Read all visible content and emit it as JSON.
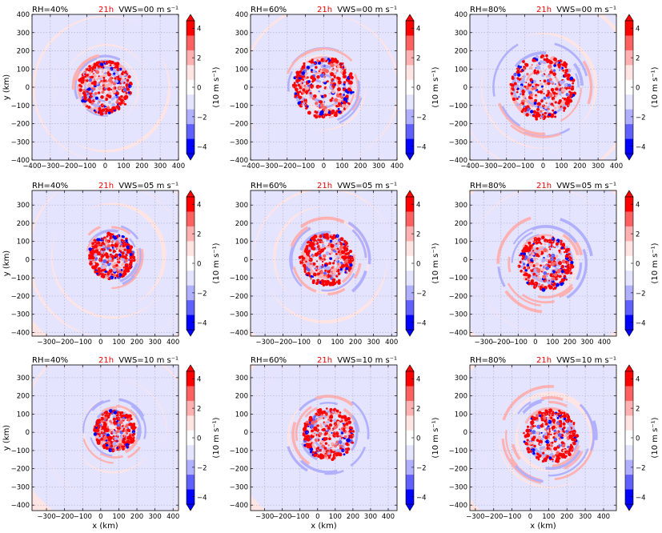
{
  "colors": {
    "red_strong": "#ff0000",
    "red_mid": "#ff6060",
    "red_light": "#ffb0b0",
    "red_faint": "#ffe4e4",
    "blue_faint": "#e4e4ff",
    "blue_light": "#b0b0ff",
    "blue_mid": "#6060ff",
    "blue_strong": "#0000ff",
    "time_label": "#e60000",
    "grid": "#b0b0c8"
  },
  "time_label": "21h",
  "colorbar": {
    "label": "(10 m s⁻¹)",
    "ticks": [
      "4",
      "2",
      "0",
      "−2",
      "−4"
    ],
    "tick_values": [
      4,
      2,
      0,
      -2,
      -4
    ]
  },
  "axis": {
    "xlabel": "x (km)",
    "ylabel": "y (km)"
  },
  "chart_data": [
    {
      "type": "heatmap",
      "rh": "RH=40%",
      "vws": "VWS=00 m s⁻¹",
      "xticks": [
        "−400",
        "−300",
        "−200",
        "−100",
        "0",
        "100",
        "200",
        "300",
        "400"
      ],
      "xvals": [
        -400,
        -300,
        -200,
        -100,
        0,
        100,
        200,
        300,
        400
      ],
      "yticks": [
        "400",
        "300",
        "200",
        "100",
        "0",
        "−100",
        "−200",
        "−300",
        "−400"
      ],
      "yvals": [
        400,
        300,
        200,
        100,
        0,
        -100,
        -200,
        -300,
        -400
      ],
      "xlim": [
        -400,
        400
      ],
      "ylim": [
        -400,
        400
      ],
      "xlabel": "",
      "ylabel": "y (km)",
      "core": {
        "cx": 0,
        "cy": 0,
        "r": 140,
        "spread": 60
      }
    },
    {
      "type": "heatmap",
      "rh": "RH=60%",
      "vws": "VWS=00 m s⁻¹",
      "xticks": [
        "−400",
        "−300",
        "−200",
        "−100",
        "0",
        "100",
        "200",
        "300",
        "400"
      ],
      "xvals": [
        -400,
        -300,
        -200,
        -100,
        0,
        100,
        200,
        300,
        400
      ],
      "yticks": [
        "400",
        "300",
        "200",
        "100",
        "0",
        "−100",
        "−200",
        "−300",
        "−400"
      ],
      "yvals": [
        400,
        300,
        200,
        100,
        0,
        -100,
        -200,
        -300,
        -400
      ],
      "xlim": [
        -400,
        400
      ],
      "ylim": [
        -400,
        400
      ],
      "xlabel": "",
      "ylabel": "",
      "core": {
        "cx": 0,
        "cy": 0,
        "r": 160,
        "spread": 80
      }
    },
    {
      "type": "heatmap",
      "rh": "RH=80%",
      "vws": "VWS=00 m s⁻¹",
      "xticks": [
        "−400",
        "−300",
        "−200",
        "−100",
        "0",
        "100",
        "200",
        "300",
        "400"
      ],
      "xvals": [
        -400,
        -300,
        -200,
        -100,
        0,
        100,
        200,
        300,
        400
      ],
      "yticks": [
        "400",
        "300",
        "200",
        "100",
        "0",
        "−100",
        "−200",
        "−300",
        "−400"
      ],
      "yvals": [
        400,
        300,
        200,
        100,
        0,
        -100,
        -200,
        -300,
        -400
      ],
      "xlim": [
        -400,
        400
      ],
      "ylim": [
        -400,
        400
      ],
      "xlabel": "",
      "ylabel": "",
      "core": {
        "cx": 0,
        "cy": 0,
        "r": 170,
        "spread": 110
      }
    },
    {
      "type": "heatmap",
      "rh": "RH=40%",
      "vws": "VWS=05 m s⁻¹",
      "xticks": [
        "−300",
        "−200",
        "−100",
        "0",
        "100",
        "200",
        "300",
        "400"
      ],
      "xvals": [
        -300,
        -200,
        -100,
        0,
        100,
        200,
        300,
        400
      ],
      "yticks": [
        "300",
        "200",
        "100",
        "0",
        "−100",
        "−200",
        "−300",
        "−400"
      ],
      "yvals": [
        300,
        200,
        100,
        0,
        -100,
        -200,
        -300,
        -400
      ],
      "xlim": [
        -380,
        430
      ],
      "ylim": [
        -420,
        380
      ],
      "xlabel": "",
      "ylabel": "y (km)",
      "core": {
        "cx": 60,
        "cy": 20,
        "r": 120,
        "spread": 60
      }
    },
    {
      "type": "heatmap",
      "rh": "RH=60%",
      "vws": "VWS=05 m s⁻¹",
      "xticks": [
        "−300",
        "−200",
        "−100",
        "0",
        "100",
        "200",
        "300",
        "400"
      ],
      "xvals": [
        -300,
        -200,
        -100,
        0,
        100,
        200,
        300,
        400
      ],
      "yticks": [
        "300",
        "200",
        "100",
        "0",
        "−100",
        "−200",
        "−300",
        "−400"
      ],
      "yvals": [
        300,
        200,
        100,
        0,
        -100,
        -200,
        -300,
        -400
      ],
      "xlim": [
        -380,
        430
      ],
      "ylim": [
        -420,
        380
      ],
      "xlabel": "",
      "ylabel": "",
      "core": {
        "cx": 40,
        "cy": 0,
        "r": 140,
        "spread": 90
      }
    },
    {
      "type": "heatmap",
      "rh": "RH=80%",
      "vws": "VWS=05 m s⁻¹",
      "xticks": [
        "−300",
        "−200",
        "−100",
        "0",
        "100",
        "200",
        "300",
        "400"
      ],
      "xvals": [
        -300,
        -200,
        -100,
        0,
        100,
        200,
        300,
        400
      ],
      "yticks": [
        "300",
        "200",
        "100",
        "0",
        "−100",
        "−200",
        "−300",
        "−400"
      ],
      "yvals": [
        300,
        200,
        100,
        0,
        -100,
        -200,
        -300,
        -400
      ],
      "xlim": [
        -380,
        470
      ],
      "ylim": [
        -420,
        380
      ],
      "xlabel": "",
      "ylabel": "",
      "core": {
        "cx": 60,
        "cy": -20,
        "r": 150,
        "spread": 120
      }
    },
    {
      "type": "heatmap",
      "rh": "RH=40%",
      "vws": "VWS=10 m s⁻¹",
      "xticks": [
        "−300",
        "−200",
        "−100",
        "0",
        "100",
        "200",
        "300",
        "400"
      ],
      "xvals": [
        -300,
        -200,
        -100,
        0,
        100,
        200,
        300,
        400
      ],
      "yticks": [
        "300",
        "200",
        "100",
        "0",
        "−100",
        "−200",
        "−300",
        "−400"
      ],
      "yvals": [
        300,
        200,
        100,
        0,
        -100,
        -200,
        -300,
        -400
      ],
      "xlim": [
        -380,
        430
      ],
      "ylim": [
        -430,
        370
      ],
      "xlabel": "x (km)",
      "ylabel": "y (km)",
      "core": {
        "cx": 80,
        "cy": 10,
        "r": 110,
        "spread": 60
      }
    },
    {
      "type": "heatmap",
      "rh": "RH=60%",
      "vws": "VWS=10 m s⁻¹",
      "xticks": [
        "−300",
        "−200",
        "−100",
        "0",
        "100",
        "200",
        "300",
        "400"
      ],
      "xvals": [
        -300,
        -200,
        -100,
        0,
        100,
        200,
        300,
        400
      ],
      "yticks": [
        "300",
        "200",
        "100",
        "0",
        "−100",
        "−200",
        "−300",
        "−400"
      ],
      "yvals": [
        300,
        200,
        100,
        0,
        -100,
        -200,
        -300,
        -400
      ],
      "xlim": [
        -380,
        450
      ],
      "ylim": [
        -430,
        370
      ],
      "xlabel": "x (km)",
      "ylabel": "",
      "core": {
        "cx": 60,
        "cy": -10,
        "r": 140,
        "spread": 90
      }
    },
    {
      "type": "heatmap",
      "rh": "RH=80%",
      "vws": "VWS=10 m s⁻¹",
      "xticks": [
        "−300",
        "−200",
        "−100",
        "0",
        "100",
        "200",
        "300",
        "400"
      ],
      "xvals": [
        -300,
        -200,
        -100,
        0,
        100,
        200,
        300,
        400
      ],
      "yticks": [
        "300",
        "200",
        "100",
        "0",
        "−100",
        "−200",
        "−300",
        "−400"
      ],
      "yvals": [
        300,
        200,
        100,
        0,
        -100,
        -200,
        -300,
        -400
      ],
      "xlim": [
        -330,
        470
      ],
      "ylim": [
        -430,
        370
      ],
      "xlabel": "x (km)",
      "ylabel": "",
      "core": {
        "cx": 110,
        "cy": -20,
        "r": 140,
        "spread": 110
      }
    }
  ]
}
